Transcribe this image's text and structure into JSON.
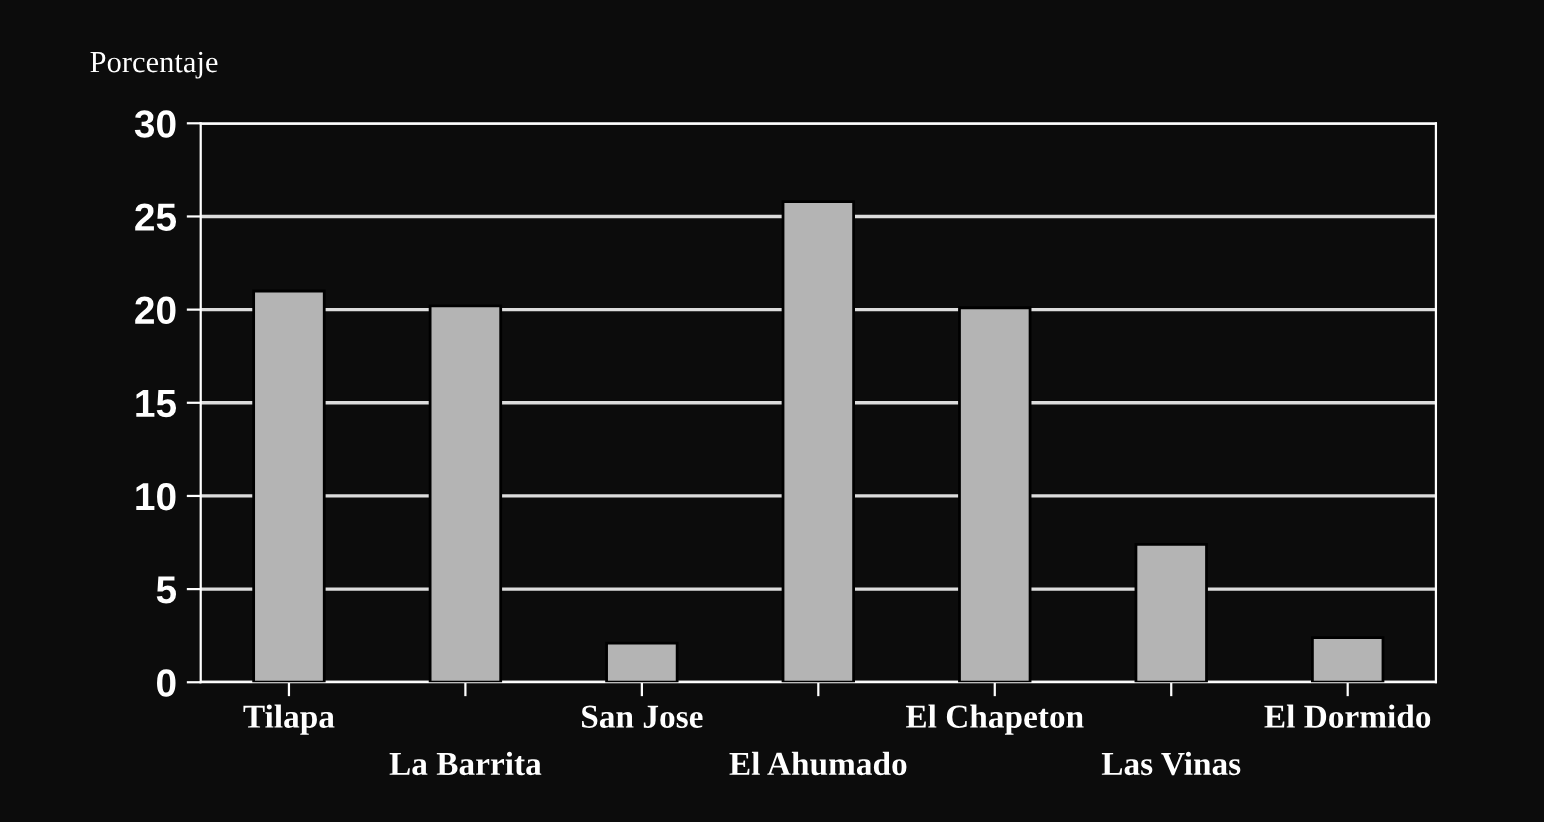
{
  "chart_data": {
    "type": "bar",
    "ylabel": "Porcentaje",
    "categories": [
      "Tilapa",
      "La Barrita",
      "San Jose",
      "El Ahumado",
      "El Chapeton",
      "Las Vinas",
      "El Dormido"
    ],
    "values": [
      21,
      20.2,
      2.1,
      25.8,
      20.1,
      7.4,
      2.4
    ],
    "color": "#b4b4b4",
    "ylim": [
      0,
      30
    ],
    "yticks": [
      0,
      5,
      10,
      15,
      20,
      25,
      30
    ],
    "grid": "y"
  }
}
